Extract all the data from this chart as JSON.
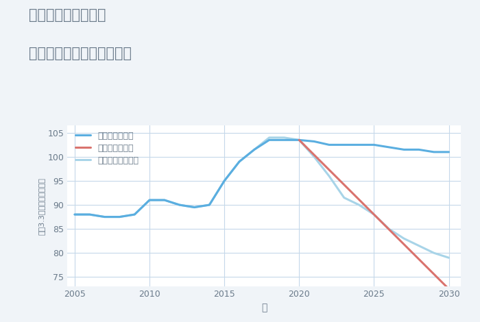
{
  "title_line1": "千葉県富津市豊岡の",
  "title_line2": "中古マンションの価格推移",
  "xlabel": "年",
  "ylabel": "坪（3.3㎡）単価（万円）",
  "background_color": "#f0f4f8",
  "plot_background_color": "#ffffff",
  "grid_color": "#c5d8ea",
  "title_color": "#6a7a8a",
  "good_scenario": {
    "label": "グッドシナリオ",
    "color": "#5aaee0",
    "linewidth": 2.2,
    "years": [
      2005,
      2006,
      2007,
      2008,
      2009,
      2010,
      2011,
      2012,
      2013,
      2014,
      2015,
      2016,
      2017,
      2018,
      2019,
      2020,
      2021,
      2022,
      2023,
      2024,
      2025,
      2026,
      2027,
      2028,
      2029,
      2030
    ],
    "values": [
      88.0,
      88.0,
      87.5,
      87.5,
      88.0,
      91.0,
      91.0,
      90.0,
      89.5,
      90.0,
      95.0,
      99.0,
      101.5,
      103.5,
      103.5,
      103.5,
      103.2,
      102.5,
      102.5,
      102.5,
      102.5,
      102.0,
      101.5,
      101.5,
      101.0,
      101.0
    ]
  },
  "bad_scenario": {
    "label": "バッドシナリオ",
    "color": "#d9736e",
    "linewidth": 2.2,
    "years": [
      2020,
      2030
    ],
    "values": [
      103.5,
      72.5
    ]
  },
  "normal_scenario": {
    "label": "ノーマルシナリオ",
    "color": "#a8d4e8",
    "linewidth": 2.2,
    "years": [
      2005,
      2006,
      2007,
      2008,
      2009,
      2010,
      2011,
      2012,
      2013,
      2014,
      2015,
      2016,
      2017,
      2018,
      2019,
      2020,
      2021,
      2022,
      2023,
      2024,
      2025,
      2026,
      2027,
      2028,
      2029,
      2030
    ],
    "values": [
      88.0,
      88.0,
      87.5,
      87.5,
      88.0,
      91.0,
      91.0,
      90.0,
      89.5,
      90.0,
      95.0,
      99.0,
      101.5,
      104.0,
      104.0,
      103.5,
      100.0,
      96.0,
      91.5,
      90.0,
      88.0,
      85.0,
      83.0,
      81.5,
      80.0,
      79.0
    ]
  },
  "xlim": [
    2004.5,
    2030.8
  ],
  "ylim": [
    73,
    106.5
  ],
  "yticks": [
    75,
    80,
    85,
    90,
    95,
    100,
    105
  ],
  "xticks": [
    2005,
    2010,
    2015,
    2020,
    2025,
    2030
  ]
}
